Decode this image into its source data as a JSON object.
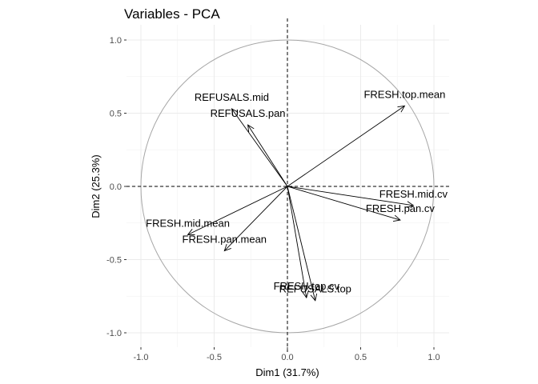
{
  "chart_data": {
    "type": "scatter",
    "subtype": "pca-variable-correlation-circle",
    "title": "Variables - PCA",
    "xlabel": "Dim1 (31.7%)",
    "ylabel": "Dim2 (25.3%)",
    "xlim": [
      -1.1,
      1.1
    ],
    "ylim": [
      -1.08,
      1.08
    ],
    "x_ticks": [
      -1.0,
      -0.5,
      0.0,
      0.5,
      1.0
    ],
    "y_ticks": [
      -1.0,
      -0.5,
      0.0,
      0.5,
      1.0
    ],
    "x_tick_labels": [
      "-1.0",
      "-0.5",
      "0.0",
      "0.5",
      "1.0"
    ],
    "y_tick_labels": [
      "-1.0",
      "-0.5",
      "0.0",
      "0.5",
      "1.0"
    ],
    "grid": true,
    "unit_circle": true,
    "variables": [
      {
        "name": "REFUSALS.mid",
        "x": -0.38,
        "y": 0.53
      },
      {
        "name": "REFUSALS.pan",
        "x": -0.27,
        "y": 0.42
      },
      {
        "name": "FRESH.top.mean",
        "x": 0.8,
        "y": 0.55
      },
      {
        "name": "FRESH.mid.cv",
        "x": 0.86,
        "y": -0.13
      },
      {
        "name": "FRESH.pan.cv",
        "x": 0.77,
        "y": -0.23
      },
      {
        "name": "FRESH.mid.mean",
        "x": -0.68,
        "y": -0.33
      },
      {
        "name": "FRESH.pan.mean",
        "x": -0.43,
        "y": -0.44
      },
      {
        "name": "FRESH.top.cv",
        "x": 0.13,
        "y": -0.76
      },
      {
        "name": "REFUSALS.top",
        "x": 0.19,
        "y": -0.78
      }
    ]
  }
}
